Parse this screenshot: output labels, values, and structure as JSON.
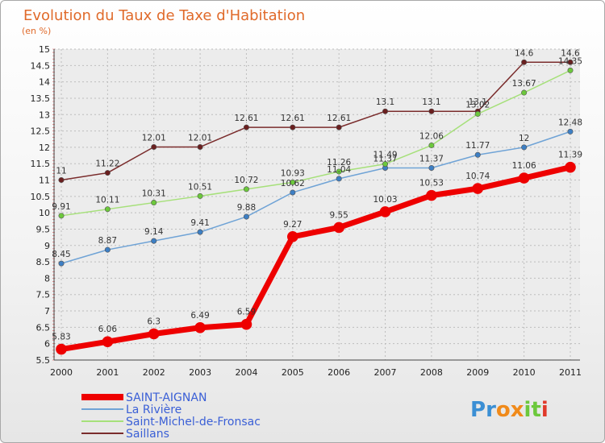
{
  "chart_data": {
    "type": "line",
    "title": "Evolution du Taux de Taxe d'Habitation",
    "subtitle": "(en %)",
    "xlabel": "",
    "ylabel": "",
    "x": [
      "2000",
      "2001",
      "2002",
      "2003",
      "2004",
      "2005",
      "2006",
      "2007",
      "2008",
      "2009",
      "2010",
      "2011"
    ],
    "ylim": [
      5.5,
      15
    ],
    "yticks": [
      "5.5",
      "6",
      "6.5",
      "7",
      "7.5",
      "8",
      "8.5",
      "9",
      "9.5",
      "10",
      "10.5",
      "11",
      "11.5",
      "12",
      "12.5",
      "13",
      "13.5",
      "14",
      "14.5",
      "15"
    ],
    "grid": true,
    "legend_placement": "bottom-left",
    "series": [
      {
        "name": "SAINT-AIGNAN",
        "values": [
          5.83,
          6.06,
          6.3,
          6.49,
          6.59,
          9.27,
          9.55,
          10.03,
          10.53,
          10.74,
          11.06,
          11.39
        ],
        "labels": [
          "5.83",
          "6.06",
          "6.3",
          "6.49",
          "6.59",
          "9.27",
          "9.55",
          "10.03",
          "10.53",
          "10.74",
          "11.06",
          "11.39"
        ],
        "color": "#ee0000",
        "point_color": "#ee0000",
        "width": 7
      },
      {
        "name": "La Rivière",
        "values": [
          8.45,
          8.87,
          9.14,
          9.41,
          9.88,
          10.62,
          11.04,
          11.37,
          11.37,
          11.77,
          12,
          12.48
        ],
        "labels": [
          "8.45",
          "8.87",
          "9.14",
          "9.41",
          "9.88",
          "10.62",
          "11.04",
          "11.37",
          "11.37",
          "11.77",
          "12",
          "12.48"
        ],
        "color": "#6fa3d6",
        "point_color": "#3d7fc4",
        "width": 1.5
      },
      {
        "name": "Saint-Michel-de-Fronsac",
        "values": [
          9.91,
          10.11,
          10.31,
          10.51,
          10.72,
          10.93,
          11.26,
          11.49,
          12.06,
          13.02,
          13.67,
          14.35
        ],
        "labels": [
          "9.91",
          "10.11",
          "10.31",
          "10.51",
          "10.72",
          "10.93",
          "11.26",
          "11.49",
          "12.06",
          "13.02",
          "13.67",
          "14.35"
        ],
        "color": "#a6e07a",
        "point_color": "#6cc83c",
        "width": 1.5
      },
      {
        "name": "Saillans",
        "values": [
          11,
          11.22,
          12.01,
          12.01,
          12.61,
          12.61,
          12.61,
          13.1,
          13.1,
          13.1,
          14.6,
          14.6
        ],
        "labels": [
          "11",
          "11.22",
          "12.01",
          "12.01",
          "12.61",
          "12.61",
          "12.61",
          "13.1",
          "13.1",
          "13.1",
          "14.6",
          "14.6"
        ],
        "color": "#7a2c2c",
        "point_color": "#6a1f1f",
        "width": 1.5
      }
    ]
  },
  "logo": {
    "text": "Proxiti"
  }
}
